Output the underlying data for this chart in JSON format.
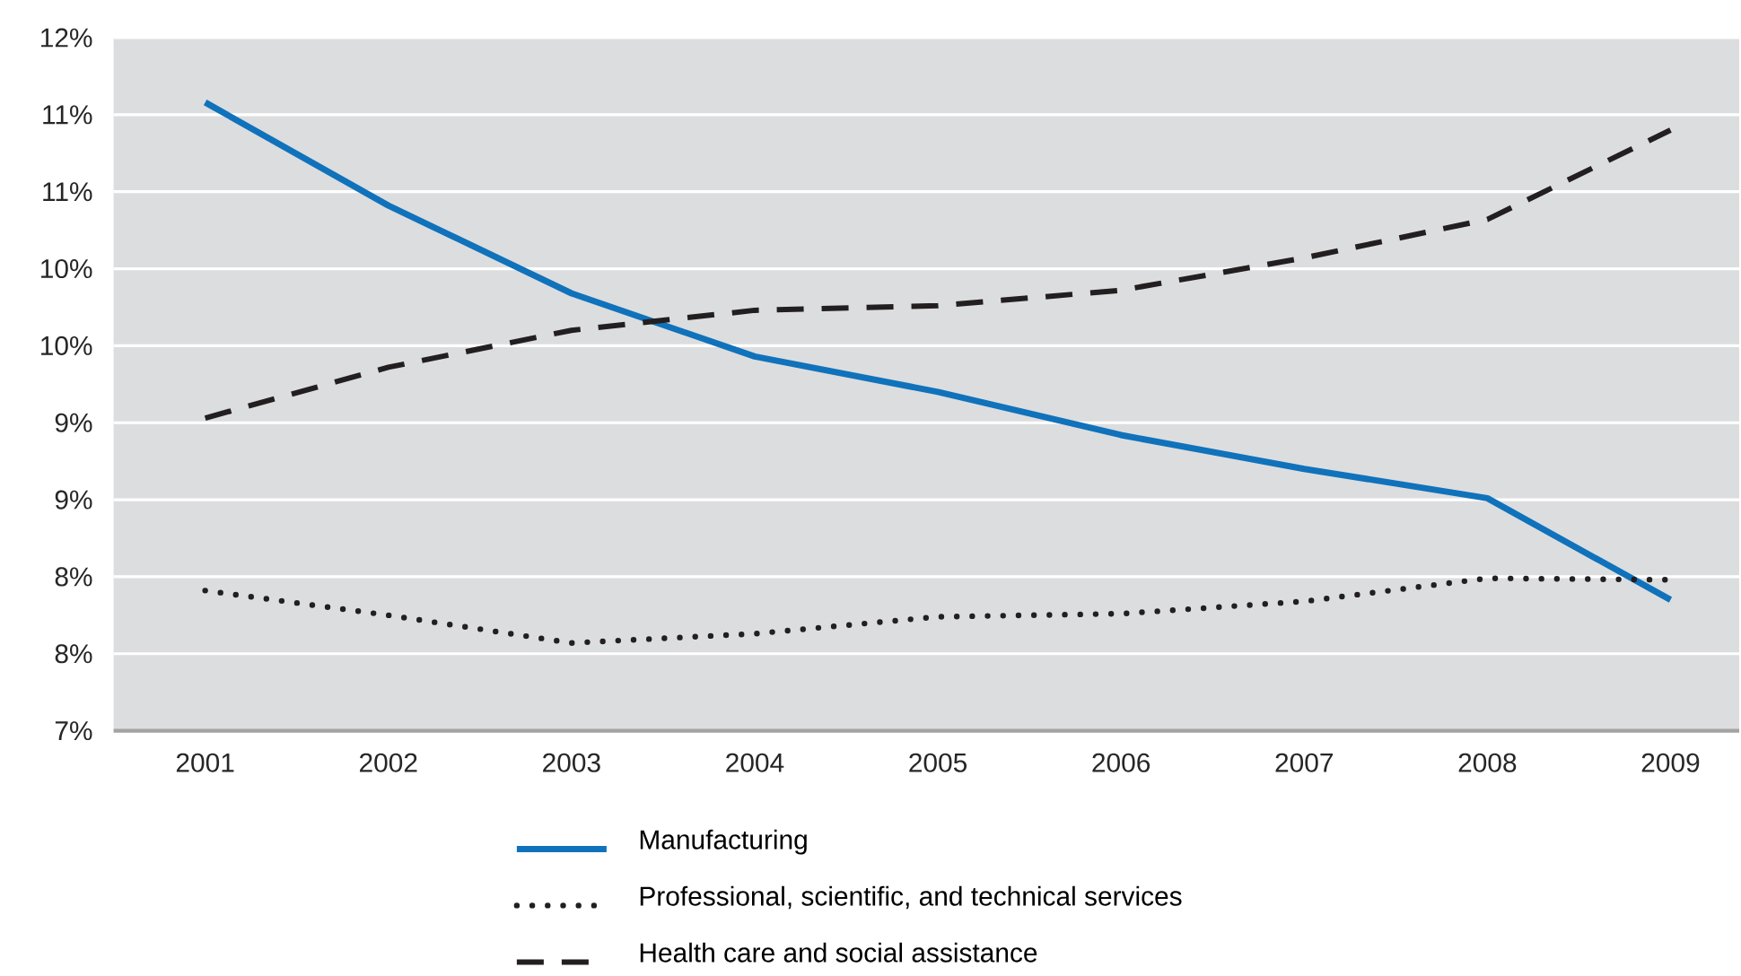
{
  "chart_data": {
    "type": "line",
    "categories": [
      "2001",
      "2002",
      "2003",
      "2004",
      "2005",
      "2006",
      "2007",
      "2008",
      "2009"
    ],
    "ylim": [
      7,
      11.5
    ],
    "yticks": [
      {
        "value": 7,
        "label": "7%"
      },
      {
        "value": 7.5,
        "label": "8%"
      },
      {
        "value": 8,
        "label": "8%"
      },
      {
        "value": 8.5,
        "label": "9%"
      },
      {
        "value": 9,
        "label": "9%"
      },
      {
        "value": 9.5,
        "label": "10%"
      },
      {
        "value": 10,
        "label": "10%"
      },
      {
        "value": 10.5,
        "label": "11%"
      },
      {
        "value": 11,
        "label": "11%"
      },
      {
        "value": 11.5,
        "label": "12%"
      }
    ],
    "grid": "y",
    "legend": "bottom",
    "series": [
      {
        "name": "Manufacturing",
        "color": "#0f72ba",
        "line_style": "solid",
        "values": [
          11.08,
          10.41,
          9.84,
          9.43,
          9.2,
          8.92,
          8.7,
          8.51,
          7.85
        ]
      },
      {
        "name": "Professional, scientific, and technical services",
        "color": "#231f20",
        "line_style": "dotted",
        "values": [
          7.91,
          7.75,
          7.57,
          7.63,
          7.74,
          7.76,
          7.84,
          7.99,
          7.98
        ]
      },
      {
        "name": "Health care and social assistance",
        "color": "#231f20",
        "line_style": "dashed",
        "values": [
          9.03,
          9.36,
          9.6,
          9.73,
          9.76,
          9.86,
          10.07,
          10.32,
          10.9
        ]
      }
    ]
  }
}
